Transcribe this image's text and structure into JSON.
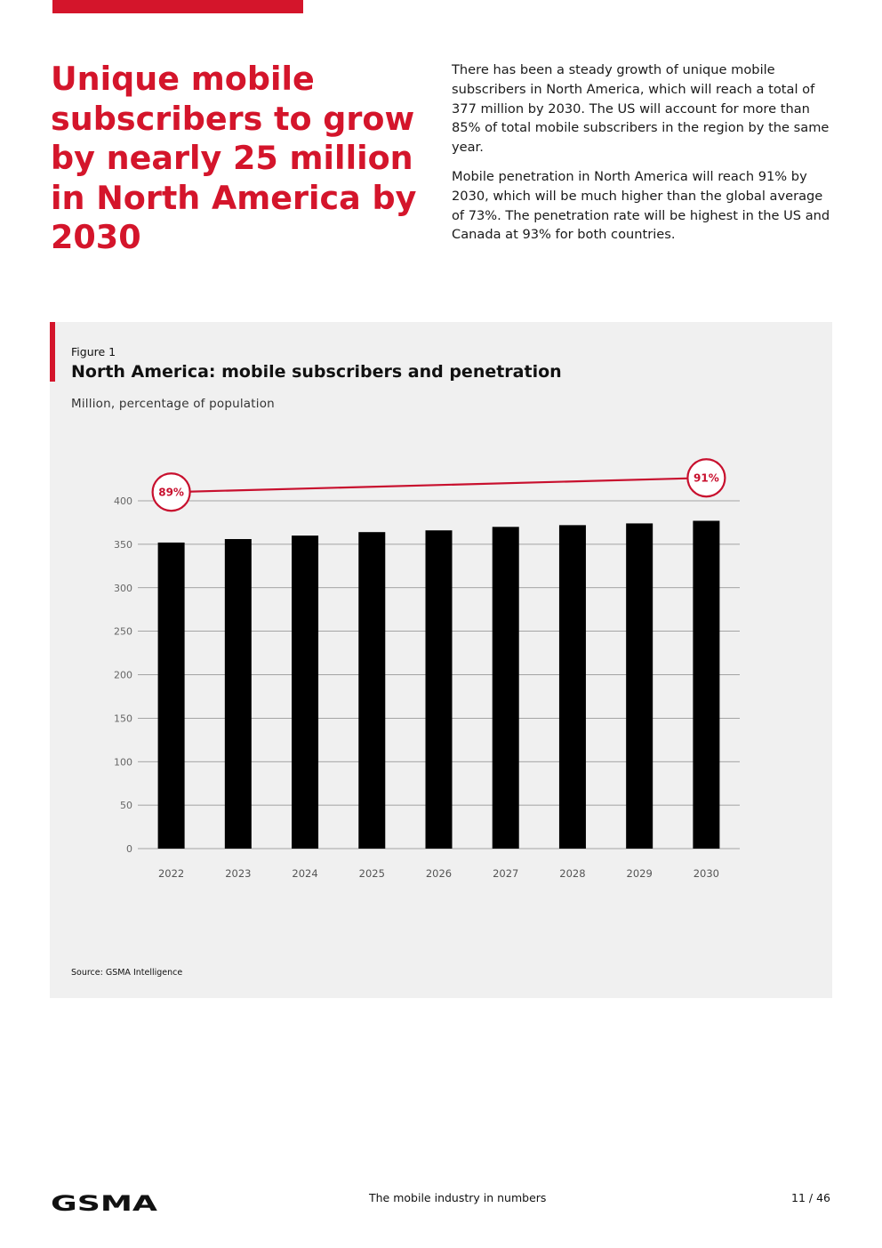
{
  "header": {
    "accent_color": "#d4152b",
    "headline": "Unique mobile subscribers to grow by nearly 25 million in North America by 2030"
  },
  "intro": {
    "paragraph_1": "There has been a steady growth of unique mobile subscribers in North America, which will reach a total of 377 million by 2030. The US will account for more than 85% of total mobile subscribers in the region by the same year.",
    "paragraph_2": "Mobile penetration in North America will reach 91% by 2030, which will be much higher than the global average of 73%. The penetration rate will be highest in the US and Canada at 93% for both countries."
  },
  "figure": {
    "label": "Figure 1",
    "title": "North America: mobile subscribers and penetration",
    "unit": "Million, percentage of population",
    "source": "Source: GSMA Intelligence"
  },
  "chart_data": {
    "type": "bar",
    "title": "North America: mobile subscribers and penetration",
    "ylabel": "Million, percentage of population",
    "xlabel": "",
    "categories": [
      "2022",
      "2023",
      "2024",
      "2025",
      "2026",
      "2027",
      "2028",
      "2029",
      "2030"
    ],
    "series": [
      {
        "name": "Unique mobile subscribers (million)",
        "type": "bar",
        "color": "#000000",
        "values": [
          352,
          356,
          360,
          364,
          366,
          370,
          372,
          374,
          377
        ]
      },
      {
        "name": "Penetration (% of population)",
        "type": "line",
        "color": "#c8102e",
        "values": [
          89,
          null,
          null,
          null,
          null,
          null,
          null,
          null,
          91
        ]
      }
    ],
    "yticks": [
      "0",
      "50",
      "100",
      "150",
      "200",
      "250",
      "300",
      "350",
      "400"
    ],
    "ylim": [
      0,
      400
    ],
    "grid": true,
    "annotations": [
      {
        "category": "2022",
        "text": "89%"
      },
      {
        "category": "2030",
        "text": "91%"
      }
    ]
  },
  "footer": {
    "logo_text": "GSMA",
    "center_text": "The mobile industry in numbers",
    "page": "11 / 46"
  }
}
